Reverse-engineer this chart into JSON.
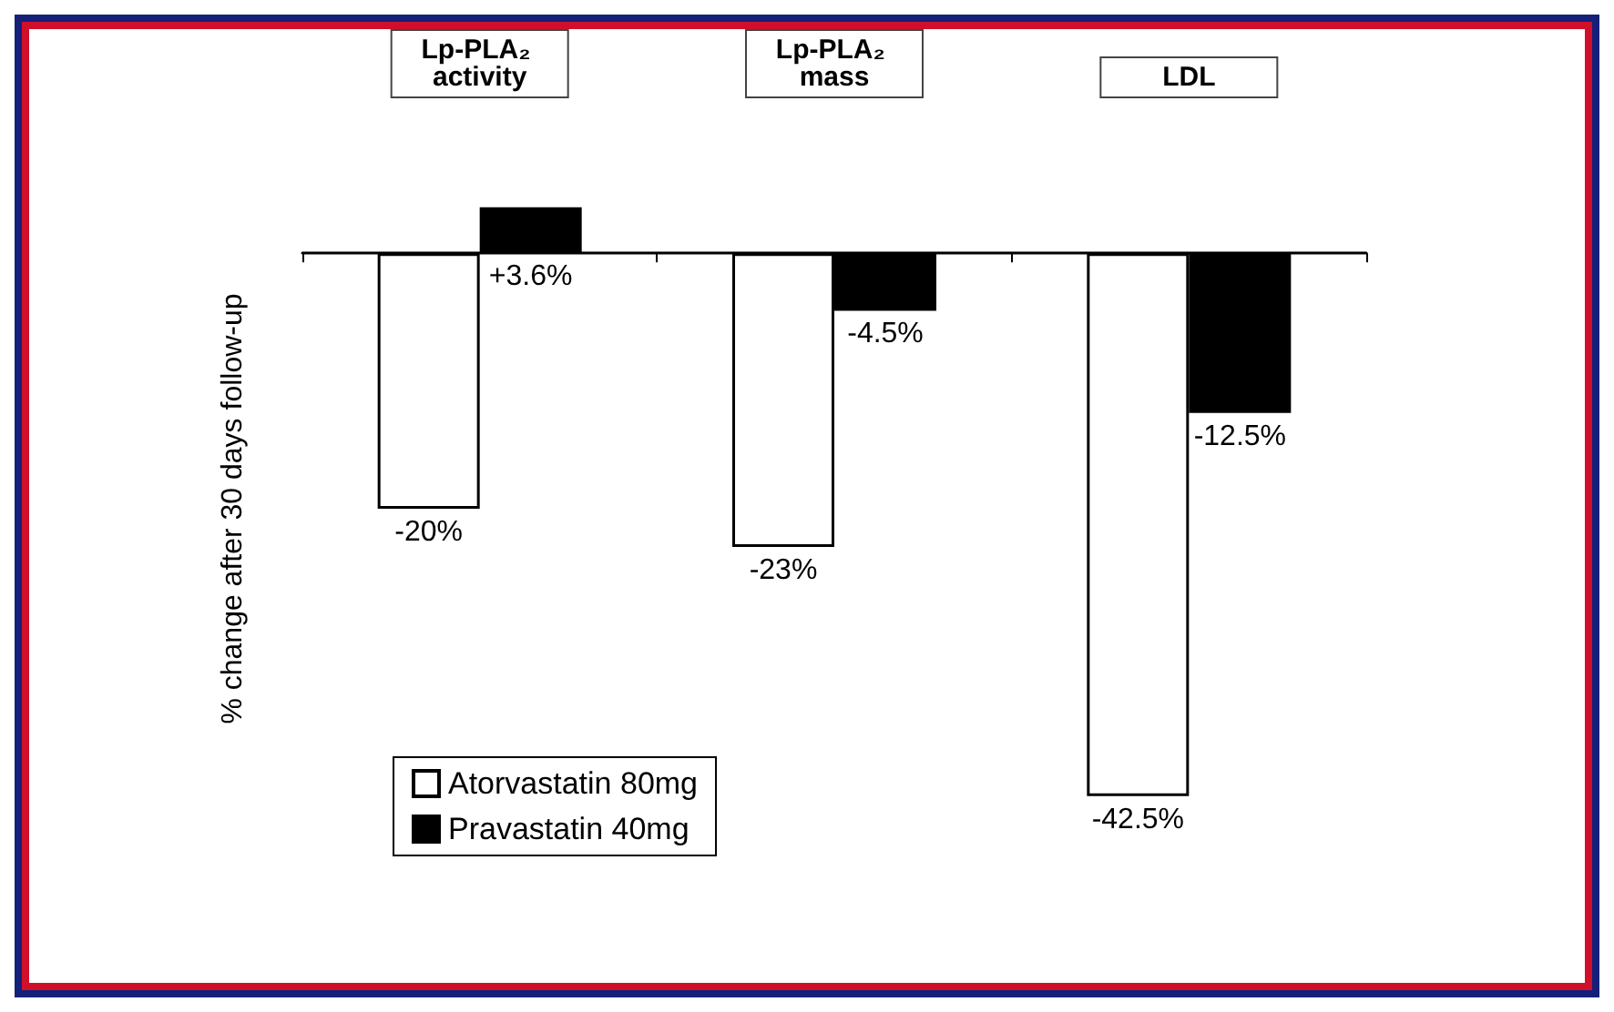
{
  "chart_data": {
    "type": "bar",
    "ylabel": "% change after 30 days follow-up",
    "categories": [
      "Lp-PLA₂ activity",
      "Lp-PLA₂ mass",
      "LDL"
    ],
    "series": [
      {
        "name": "Atorvastatin 80mg",
        "color": "#ffffff",
        "values": [
          -20,
          -23,
          -42.5
        ],
        "value_labels": [
          "-20%",
          "-23%",
          "-42.5%"
        ]
      },
      {
        "name": "Pravastatin 40mg",
        "color": "#000000",
        "values": [
          3.6,
          -4.5,
          -12.5
        ],
        "value_labels": [
          "+3.6%",
          "-4.5%",
          "-12.5%"
        ]
      }
    ],
    "tick_labels": "x",
    "grid": false,
    "legend": "bottom left"
  }
}
